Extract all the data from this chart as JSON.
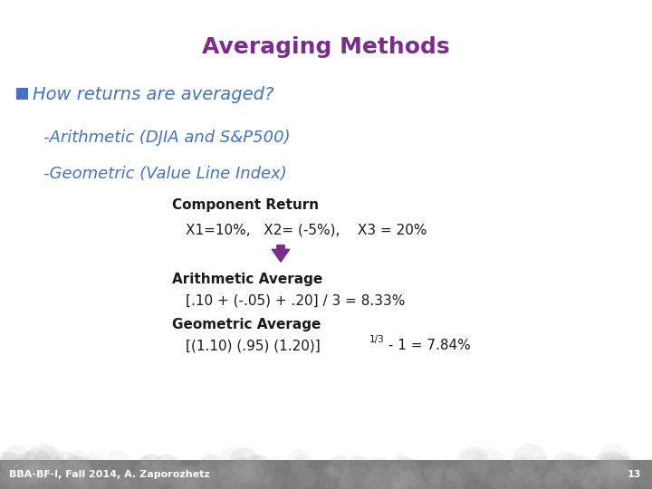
{
  "title": "Averaging Methods",
  "title_color": "#7B2D8B",
  "title_fontsize": 18,
  "title_fontweight": "bold",
  "bullet_text": "How returns are averaged?",
  "bullet_color": "#4472C4",
  "bullet_fontsize": 14,
  "bullet_square_color": "#4472C4",
  "item1": "-Arithmetic (DJIA and S&P500)",
  "item2": "-Geometric (Value Line Index)",
  "item_color": "#4472C4",
  "item_fontsize": 13,
  "comp_return_label": "Component Return",
  "comp_return_values": "X1=10%,   X2= (-5%),    X3 = 20%",
  "arith_label": "Arithmetic Average",
  "arith_formula": "[.10 + (-.05) + .20] / 3 = 8.33%",
  "geom_label": "Geometric Average",
  "geom_formula": "[(1.10) (.95) (1.20)]",
  "geom_exponent": "1/3",
  "geom_suffix": " - 1 = 7.84%",
  "body_color": "#1A1A1A",
  "body_fontsize": 11,
  "label_fontsize": 11,
  "arrow_color": "#7B2D8B",
  "footer_text": "BBA-BF-I, Fall 2014, A. Zaporozhetz",
  "footer_page": "13",
  "footer_color": "#FFFFFF",
  "footer_bg": "#555555",
  "bg_color": "#FFFFFF",
  "slide_bg": "#FFFFFF"
}
